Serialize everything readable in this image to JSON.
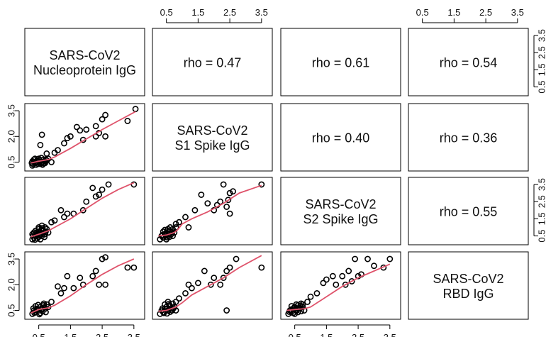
{
  "chart_data": {
    "type": "scatter",
    "title": "",
    "variables": [
      "SARS-CoV2\nNucleoprotein IgG",
      "SARS-CoV2\nS1 Spike IgG",
      "SARS-CoV2\nS2 Spike IgG",
      "SARS-CoV2\nRBD IgG"
    ],
    "axis_range": [
      0.15,
      3.75
    ],
    "ticks": [
      0.5,
      1.5,
      2.5,
      3.5
    ],
    "tick_labels": [
      "0.5",
      "1.5",
      "2.5",
      "3.5"
    ],
    "left_axis_tick_labels": [
      "0.5",
      "2.0",
      "3.5"
    ],
    "right_axis_tick_labels": [
      "0.5",
      "1.5",
      "2.5",
      "3.5"
    ],
    "correlations": [
      {
        "row": 1,
        "col": 2,
        "label": "rho = 0.47"
      },
      {
        "row": 1,
        "col": 3,
        "label": "rho = 0.61"
      },
      {
        "row": 1,
        "col": 4,
        "label": "rho = 0.54"
      },
      {
        "row": 2,
        "col": 3,
        "label": "rho = 0.40"
      },
      {
        "row": 2,
        "col": 4,
        "label": "rho = 0.36"
      },
      {
        "row": 3,
        "col": 4,
        "label": "rho = 0.55"
      }
    ],
    "smooth_color": "#DF536B",
    "point_color": "#000000",
    "scatter_panels": [
      {
        "row": 2,
        "col": 1,
        "points": [
          [
            3.55,
            3.6
          ],
          [
            3.3,
            2.9
          ],
          [
            2.6,
            3.25
          ],
          [
            2.5,
            3.0
          ],
          [
            2.3,
            2.6
          ],
          [
            2.4,
            2.2
          ],
          [
            2.6,
            2.0
          ],
          [
            2.3,
            2.0
          ],
          [
            2.0,
            2.4
          ],
          [
            1.9,
            1.8
          ],
          [
            1.7,
            2.55
          ],
          [
            1.8,
            2.35
          ],
          [
            1.5,
            2.0
          ],
          [
            1.4,
            1.9
          ],
          [
            1.3,
            1.6
          ],
          [
            1.1,
            1.2
          ],
          [
            1.0,
            1.05
          ],
          [
            0.75,
            1.0
          ],
          [
            0.6,
            2.1
          ],
          [
            0.55,
            1.5
          ],
          [
            0.9,
            0.5
          ],
          [
            0.3,
            0.3
          ],
          [
            0.35,
            0.5
          ],
          [
            0.4,
            0.45
          ],
          [
            0.45,
            0.6
          ],
          [
            0.5,
            0.55
          ],
          [
            0.55,
            0.4
          ],
          [
            0.6,
            0.5
          ],
          [
            0.65,
            0.65
          ],
          [
            0.3,
            0.55
          ],
          [
            0.35,
            0.65
          ],
          [
            0.5,
            0.7
          ],
          [
            0.7,
            0.45
          ],
          [
            0.75,
            0.6
          ],
          [
            0.8,
            0.7
          ],
          [
            0.42,
            0.35
          ],
          [
            0.58,
            0.75
          ],
          [
            0.28,
            0.45
          ],
          [
            0.68,
            0.55
          ],
          [
            0.48,
            0.4
          ],
          [
            0.38,
            0.7
          ],
          [
            0.62,
            0.35
          ],
          [
            0.52,
            0.62
          ],
          [
            0.33,
            0.38
          ],
          [
            0.72,
            0.66
          ],
          [
            0.44,
            0.52
          ],
          [
            0.57,
            0.46
          ],
          [
            0.66,
            0.42
          ]
        ],
        "smooth": [
          [
            0.25,
            0.45
          ],
          [
            0.5,
            0.55
          ],
          [
            0.8,
            0.65
          ],
          [
            1.0,
            0.8
          ],
          [
            1.5,
            1.3
          ],
          [
            2.0,
            1.85
          ],
          [
            2.5,
            2.4
          ],
          [
            3.0,
            2.9
          ],
          [
            3.55,
            3.45
          ]
        ]
      },
      {
        "row": 3,
        "col": 1,
        "points": [
          [
            3.5,
            3.5
          ],
          [
            2.7,
            3.5
          ],
          [
            2.5,
            3.2
          ],
          [
            2.4,
            2.9
          ],
          [
            2.3,
            2.8
          ],
          [
            2.2,
            3.3
          ],
          [
            2.0,
            2.5
          ],
          [
            1.9,
            2.0
          ],
          [
            1.6,
            1.8
          ],
          [
            1.4,
            1.8
          ],
          [
            1.3,
            1.6
          ],
          [
            1.2,
            2.0
          ],
          [
            1.0,
            1.4
          ],
          [
            0.9,
            1.3
          ],
          [
            0.6,
            1.1
          ],
          [
            0.3,
            0.3
          ],
          [
            0.35,
            0.4
          ],
          [
            0.4,
            0.5
          ],
          [
            0.45,
            0.6
          ],
          [
            0.5,
            0.45
          ],
          [
            0.55,
            0.7
          ],
          [
            0.6,
            0.5
          ],
          [
            0.65,
            0.8
          ],
          [
            0.7,
            0.6
          ],
          [
            0.75,
            0.9
          ],
          [
            0.8,
            0.7
          ],
          [
            0.3,
            0.6
          ],
          [
            0.4,
            0.8
          ],
          [
            0.5,
            0.9
          ],
          [
            0.6,
            0.95
          ],
          [
            0.7,
            1.0
          ],
          [
            0.5,
            1.0
          ],
          [
            0.35,
            0.7
          ],
          [
            0.45,
            0.35
          ],
          [
            0.55,
            0.3
          ],
          [
            0.62,
            0.62
          ],
          [
            0.42,
            0.66
          ],
          [
            0.72,
            0.76
          ],
          [
            0.52,
            0.56
          ],
          [
            0.33,
            0.52
          ],
          [
            0.68,
            0.44
          ],
          [
            0.58,
            0.84
          ],
          [
            0.48,
            0.74
          ],
          [
            0.38,
            0.28
          ]
        ],
        "smooth": [
          [
            0.25,
            0.45
          ],
          [
            0.5,
            0.6
          ],
          [
            0.8,
            0.8
          ],
          [
            1.0,
            1.0
          ],
          [
            1.5,
            1.5
          ],
          [
            2.0,
            2.1
          ],
          [
            2.5,
            2.7
          ],
          [
            3.0,
            3.2
          ],
          [
            3.5,
            3.6
          ]
        ]
      },
      {
        "row": 3,
        "col": 2,
        "points": [
          [
            3.5,
            3.5
          ],
          [
            2.6,
            3.1
          ],
          [
            2.5,
            3.0
          ],
          [
            2.45,
            2.6
          ],
          [
            2.4,
            2.2
          ],
          [
            2.5,
            1.8
          ],
          [
            2.2,
            2.5
          ],
          [
            2.1,
            2.3
          ],
          [
            2.0,
            2.0
          ],
          [
            1.8,
            2.4
          ],
          [
            1.6,
            2.9
          ],
          [
            2.3,
            3.5
          ],
          [
            1.4,
            2.0
          ],
          [
            1.2,
            1.0
          ],
          [
            1.1,
            1.6
          ],
          [
            0.9,
            1.3
          ],
          [
            0.8,
            1.2
          ],
          [
            0.3,
            0.3
          ],
          [
            0.35,
            0.5
          ],
          [
            0.4,
            0.4
          ],
          [
            0.45,
            0.6
          ],
          [
            0.5,
            0.7
          ],
          [
            0.55,
            0.5
          ],
          [
            0.6,
            0.8
          ],
          [
            0.65,
            0.6
          ],
          [
            0.7,
            0.9
          ],
          [
            0.75,
            0.7
          ],
          [
            0.8,
            1.0
          ],
          [
            0.5,
            0.3
          ],
          [
            0.6,
            0.45
          ],
          [
            0.4,
            0.75
          ],
          [
            0.7,
            0.5
          ],
          [
            0.55,
            0.9
          ],
          [
            0.45,
            0.85
          ],
          [
            0.62,
            1.0
          ],
          [
            0.38,
            0.55
          ],
          [
            0.52,
            0.42
          ],
          [
            0.68,
            0.72
          ],
          [
            0.58,
            0.62
          ],
          [
            0.48,
            0.52
          ]
        ],
        "smooth": [
          [
            0.25,
            0.5
          ],
          [
            0.5,
            0.55
          ],
          [
            0.75,
            0.7
          ],
          [
            0.85,
            0.85
          ],
          [
            1.0,
            1.2
          ],
          [
            1.3,
            1.5
          ],
          [
            1.8,
            1.9
          ],
          [
            2.3,
            2.4
          ],
          [
            2.8,
            3.0
          ],
          [
            3.5,
            3.45
          ]
        ]
      },
      {
        "row": 4,
        "col": 1,
        "points": [
          [
            3.5,
            3.0
          ],
          [
            3.3,
            3.0
          ],
          [
            2.6,
            3.6
          ],
          [
            2.5,
            3.5
          ],
          [
            2.3,
            2.8
          ],
          [
            2.2,
            2.5
          ],
          [
            2.4,
            2.0
          ],
          [
            2.6,
            2.0
          ],
          [
            1.9,
            2.0
          ],
          [
            1.8,
            2.4
          ],
          [
            1.6,
            1.8
          ],
          [
            1.4,
            2.5
          ],
          [
            1.3,
            1.8
          ],
          [
            1.2,
            1.5
          ],
          [
            1.1,
            1.9
          ],
          [
            0.9,
            1.0
          ],
          [
            0.8,
            0.7
          ],
          [
            0.3,
            0.3
          ],
          [
            0.35,
            0.5
          ],
          [
            0.4,
            0.4
          ],
          [
            0.45,
            0.6
          ],
          [
            0.5,
            0.5
          ],
          [
            0.55,
            0.7
          ],
          [
            0.6,
            0.55
          ],
          [
            0.65,
            0.8
          ],
          [
            0.7,
            0.6
          ],
          [
            0.75,
            0.85
          ],
          [
            0.4,
            0.75
          ],
          [
            0.55,
            0.35
          ],
          [
            0.62,
            0.45
          ],
          [
            0.48,
            0.82
          ],
          [
            0.33,
            0.62
          ],
          [
            0.68,
            0.68
          ],
          [
            0.52,
            0.28
          ],
          [
            0.58,
            0.58
          ],
          [
            0.42,
            0.52
          ],
          [
            0.72,
            0.4
          ],
          [
            0.36,
            0.36
          ],
          [
            0.66,
            0.9
          ]
        ],
        "smooth": [
          [
            0.25,
            0.35
          ],
          [
            0.5,
            0.55
          ],
          [
            0.8,
            0.65
          ],
          [
            1.0,
            0.8
          ],
          [
            1.5,
            1.35
          ],
          [
            2.0,
            2.0
          ],
          [
            2.5,
            2.6
          ],
          [
            3.0,
            3.1
          ],
          [
            3.5,
            3.5
          ]
        ]
      },
      {
        "row": 4,
        "col": 2,
        "points": [
          [
            3.5,
            3.0
          ],
          [
            2.7,
            3.5
          ],
          [
            2.5,
            3.0
          ],
          [
            2.4,
            2.8
          ],
          [
            2.3,
            2.4
          ],
          [
            2.2,
            2.0
          ],
          [
            2.0,
            2.4
          ],
          [
            1.9,
            2.0
          ],
          [
            1.7,
            2.8
          ],
          [
            1.5,
            2.1
          ],
          [
            1.3,
            1.8
          ],
          [
            1.1,
            1.5
          ],
          [
            1.2,
            2.0
          ],
          [
            0.9,
            1.2
          ],
          [
            0.8,
            0.5
          ],
          [
            0.3,
            0.3
          ],
          [
            0.35,
            0.5
          ],
          [
            0.4,
            0.4
          ],
          [
            0.45,
            0.6
          ],
          [
            0.5,
            0.7
          ],
          [
            0.55,
            0.5
          ],
          [
            0.6,
            0.8
          ],
          [
            0.65,
            0.6
          ],
          [
            0.7,
            0.9
          ],
          [
            0.75,
            0.7
          ],
          [
            0.8,
            1.0
          ],
          [
            0.55,
            1.0
          ],
          [
            0.45,
            0.85
          ],
          [
            0.62,
            0.42
          ],
          [
            0.38,
            0.62
          ],
          [
            0.68,
            0.5
          ],
          [
            0.52,
            0.32
          ],
          [
            0.58,
            0.88
          ],
          [
            0.42,
            0.35
          ],
          [
            0.72,
            0.62
          ],
          [
            2.4,
            0.5
          ]
        ],
        "smooth": [
          [
            0.25,
            0.45
          ],
          [
            0.5,
            0.5
          ],
          [
            0.8,
            0.7
          ],
          [
            1.0,
            0.95
          ],
          [
            1.3,
            1.4
          ],
          [
            1.8,
            1.9
          ],
          [
            2.3,
            2.4
          ],
          [
            2.8,
            3.0
          ],
          [
            3.5,
            3.7
          ]
        ]
      },
      {
        "row": 4,
        "col": 3,
        "points": [
          [
            3.5,
            3.5
          ],
          [
            3.3,
            3.0
          ],
          [
            3.0,
            3.1
          ],
          [
            2.8,
            3.5
          ],
          [
            2.6,
            2.6
          ],
          [
            2.5,
            2.5
          ],
          [
            2.4,
            3.5
          ],
          [
            2.3,
            2.2
          ],
          [
            2.2,
            2.8
          ],
          [
            2.1,
            2.0
          ],
          [
            2.0,
            2.5
          ],
          [
            1.8,
            2.0
          ],
          [
            1.7,
            2.5
          ],
          [
            1.5,
            2.3
          ],
          [
            1.4,
            2.1
          ],
          [
            1.2,
            1.5
          ],
          [
            1.0,
            1.3
          ],
          [
            0.9,
            1.0
          ],
          [
            0.3,
            0.3
          ],
          [
            0.35,
            0.5
          ],
          [
            0.4,
            0.4
          ],
          [
            0.45,
            0.6
          ],
          [
            0.5,
            0.7
          ],
          [
            0.55,
            0.5
          ],
          [
            0.6,
            0.8
          ],
          [
            0.65,
            0.6
          ],
          [
            0.7,
            0.9
          ],
          [
            0.75,
            0.7
          ],
          [
            0.8,
            0.5
          ],
          [
            0.5,
            0.3
          ],
          [
            0.6,
            0.4
          ],
          [
            0.4,
            0.75
          ],
          [
            0.7,
            0.45
          ],
          [
            0.55,
            0.85
          ],
          [
            0.45,
            0.35
          ],
          [
            0.62,
            0.62
          ],
          [
            0.38,
            0.55
          ],
          [
            0.68,
            0.78
          ],
          [
            0.52,
            0.52
          ],
          [
            0.33,
            0.42
          ],
          [
            0.75,
            0.85
          ],
          [
            0.48,
            0.66
          ]
        ],
        "smooth": [
          [
            0.25,
            0.5
          ],
          [
            0.5,
            0.55
          ],
          [
            0.8,
            0.6
          ],
          [
            1.0,
            0.7
          ],
          [
            1.5,
            1.3
          ],
          [
            2.0,
            1.9
          ],
          [
            2.5,
            2.4
          ],
          [
            3.0,
            2.8
          ],
          [
            3.5,
            3.2
          ]
        ]
      }
    ]
  }
}
